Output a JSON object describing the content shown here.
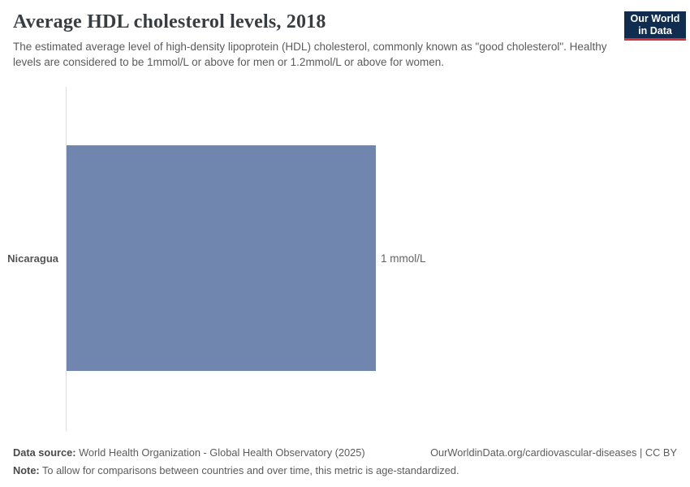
{
  "header": {
    "title": "Average HDL cholesterol levels, 2018",
    "subtitle": "The estimated average level of high-density lipoprotein (HDL) cholesterol, commonly known as \"good cholesterol\". Healthy levels are considered to be 1mmol/L or above for men or 1.2mmol/L or above for women.",
    "logo": {
      "line1": "Our World",
      "line2": "in Data"
    }
  },
  "chart_data": {
    "type": "bar",
    "orientation": "horizontal",
    "title": "Average HDL cholesterol levels, 2018",
    "categories": [
      "Nicaragua"
    ],
    "values": [
      1
    ],
    "unit": "mmol/L",
    "value_labels": [
      "1 mmol/L"
    ],
    "xlim": [
      0,
      1
    ],
    "grid": false,
    "legend": "none",
    "bar_color": "#7086af"
  },
  "footer": {
    "datasource_label": "Data source:",
    "datasource_text": " World Health Organization - Global Health Observatory (2025)",
    "url_text": "OurWorldinData.org/cardiovascular-diseases | CC BY",
    "note_label": "Note:",
    "note_text": " To allow for comparisons between countries and over time, this metric is age-standardized."
  },
  "colors": {
    "bar": "#7086af",
    "axis": "#dedede",
    "logo_bg": "#102d50",
    "logo_accent": "#d3313a",
    "title_text": "#383d42",
    "body_text": "#5b5b5b"
  }
}
